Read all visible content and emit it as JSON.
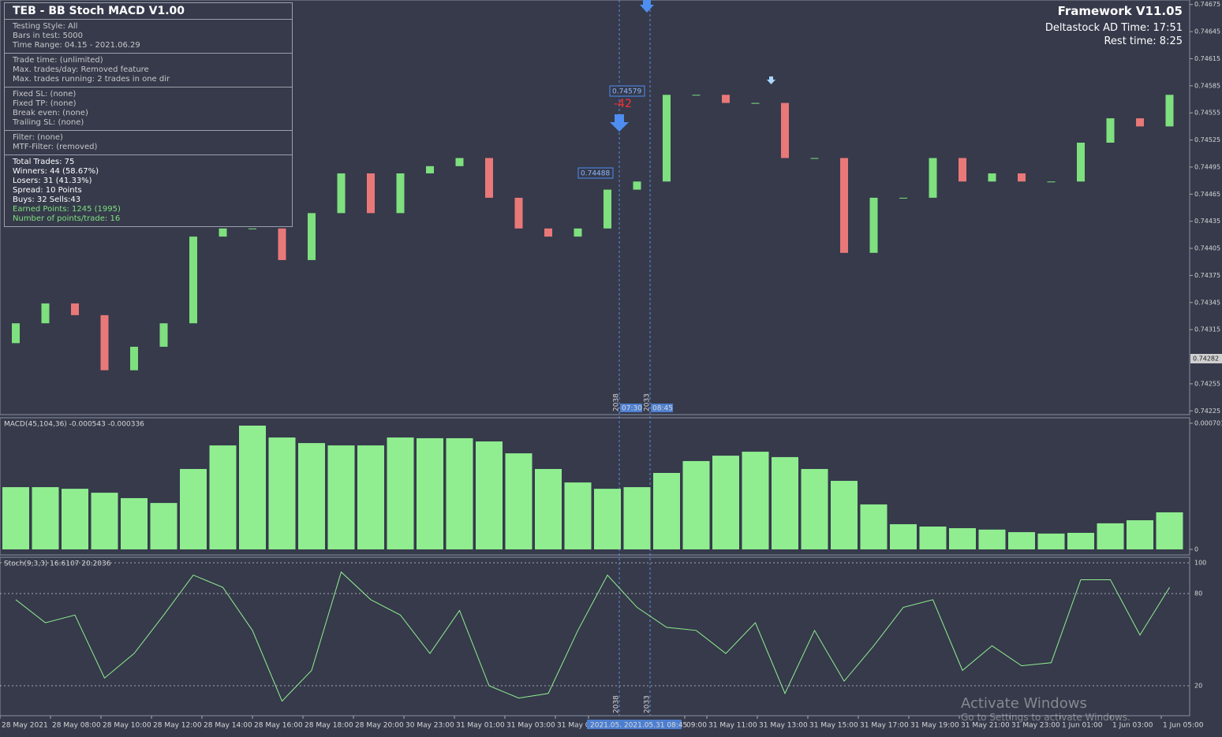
{
  "header": {
    "title": "TEB - BB Stoch MACD V1.00",
    "framework": "Framework V11.05",
    "server_time": "Deltastock AD Time: 17:51",
    "rest_time": "Rest time: 8:25"
  },
  "info_panel": {
    "sections": [
      [
        "Testing Style:  All",
        "Bars in test: 5000",
        "Time Range: 04.15 - 2021.06.29"
      ],
      [
        "Trade time: (unlimited)",
        "Max. trades/day: Removed feature",
        "Max. trades running: 2 trades in one dir"
      ],
      [
        "Fixed SL: (none)",
        "Fixed TP: (none)",
        "Break even: (none)",
        "Trailing SL: (none)"
      ],
      [
        "Filter: (none)",
        "MTF-Filter: (removed)"
      ]
    ],
    "stats": [
      "Total Trades: 75",
      "Winners: 44  (58.67%)",
      "Losers: 31  (41.33%)",
      "Spread: 10 Points",
      "Buys: 32 Sells:43"
    ],
    "earned": [
      "Earned Points: 1245 (1995)",
      "Number of points/trade: 16"
    ]
  },
  "price_chart": {
    "ylim": [
      0.7422,
      0.7468
    ],
    "yticks": [
      0.74675,
      0.74645,
      0.74615,
      0.74585,
      0.74555,
      0.74525,
      0.74495,
      0.74465,
      0.74435,
      0.74405,
      0.74375,
      0.74345,
      0.74315,
      0.74255,
      0.74225
    ],
    "current_price": "0.74282",
    "open": [
      0.743,
      0.74322,
      0.74344,
      0.74331,
      0.7427,
      0.74296,
      0.74322,
      0.74418,
      0.74427,
      0.74427,
      0.74392,
      0.74444,
      0.74488,
      0.74444,
      0.74488,
      0.74496,
      0.74505,
      0.74461,
      0.74427,
      0.74418,
      0.74427,
      0.7447,
      0.74479,
      0.74575,
      0.74575,
      0.74566,
      0.74566,
      0.74505,
      0.74505,
      0.744,
      0.74461,
      0.74461,
      0.74505,
      0.74479,
      0.74488,
      0.74479,
      0.74479,
      0.74522,
      0.74549,
      0.7454
    ],
    "close": [
      0.74322,
      0.74344,
      0.74331,
      0.7427,
      0.74296,
      0.74322,
      0.74418,
      0.74427,
      0.74427,
      0.74392,
      0.74444,
      0.74488,
      0.74444,
      0.74488,
      0.74496,
      0.74505,
      0.74461,
      0.74427,
      0.74418,
      0.74427,
      0.7447,
      0.74479,
      0.74575,
      0.74575,
      0.74566,
      0.74566,
      0.74505,
      0.74505,
      0.744,
      0.74461,
      0.74461,
      0.74505,
      0.74479,
      0.74488,
      0.74479,
      0.74479,
      0.74522,
      0.74549,
      0.7454,
      0.74575
    ],
    "entry_label": "0.74579",
    "result_label": "-42",
    "exit_label": "0.74488",
    "bar_numbers": [
      "2038",
      "2033"
    ],
    "bar_times": [
      "07:30",
      "08:45"
    ]
  },
  "macd": {
    "label": "MACD(45,104,36) -0.000543 -0.000336",
    "ylim": [
      0,
      0.000701
    ],
    "yticks": [
      0,
      0.000701
    ],
    "values": [
      0.000346,
      0.000346,
      0.000337,
      0.000315,
      0.000285,
      0.000258,
      0.000447,
      0.000578,
      0.000688,
      0.000622,
      0.000591,
      0.000578,
      0.000578,
      0.000622,
      0.000618,
      0.000618,
      0.0006,
      0.000534,
      0.000447,
      0.000372,
      0.000337,
      0.000346,
      0.000425,
      0.000491,
      0.000521,
      0.000543,
      0.000513,
      0.000447,
      0.000381,
      0.00025,
      0.00014,
      0.000127,
      0.000118,
      0.00011,
      9.6e-05,
      8.8e-05,
      9.2e-05,
      0.000145,
      0.000162,
      0.000206
    ]
  },
  "stoch": {
    "label": "Stoch(9,3,3) 16.6107 20.2036",
    "ylim": [
      0,
      100
    ],
    "yticks": [
      20,
      80,
      100
    ],
    "values": [
      76,
      61,
      66,
      25,
      41,
      66,
      92,
      84,
      56,
      10,
      30,
      94,
      76,
      66,
      41,
      69,
      20,
      12,
      15,
      56,
      92,
      71,
      58,
      56,
      41,
      61,
      15,
      56,
      23,
      46,
      71,
      76,
      30,
      46,
      33,
      35,
      89,
      89,
      53,
      84
    ]
  },
  "time_axis": [
    "28 May 2021",
    "28 May 08:00",
    "28 May 10:00",
    "28 May 12:00",
    "28 May 14:00",
    "28 May 16:00",
    "28 May 18:00",
    "28 May 20:00",
    "30 May 23:00",
    "31 May 01:00",
    "31 May 03:00",
    "31 May 0",
    "2021.05. 2021.05.31 08:45",
    "09:00",
    "31 May 11:00",
    "31 May 13:00",
    "31 May 15:00",
    "31 May 17:00",
    "31 May 19:00",
    "31 May 21:00",
    "31 May 23:00",
    "1 Jun 01:00",
    "1 Jun 03:00",
    "1 Jun 05:00"
  ],
  "watermark": {
    "title": "Activate Windows",
    "subtitle": "Go to Settings to activate Windows."
  }
}
